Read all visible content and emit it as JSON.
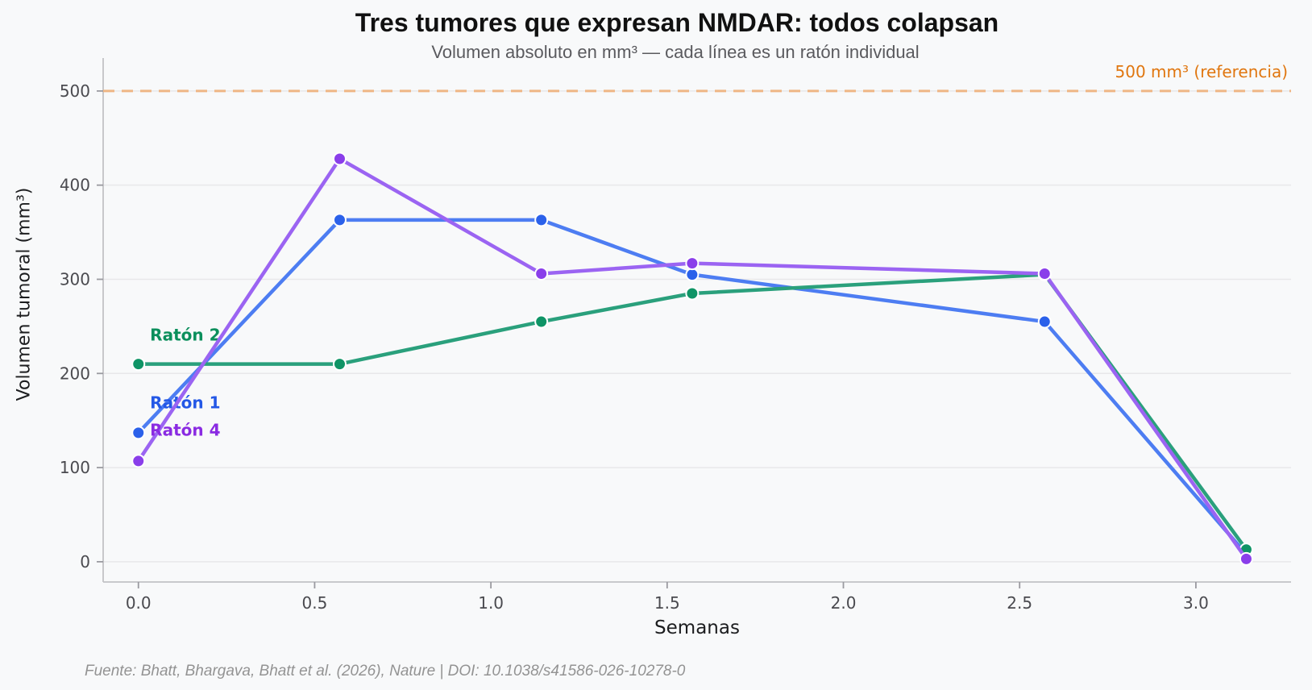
{
  "figure": {
    "background": "#f8f9fa",
    "footer": "Fuente: Bhatt, Bhargava, Bhatt et al. (2026), Nature | DOI: 10.1038/s41586-026-10278-0"
  },
  "colors": {
    "grid": "#e8e8ea",
    "spine": "#c2c2c6",
    "tick": "#9a9aa0",
    "tick_label": "#4a4a4f",
    "title": "#111111",
    "subtitle": "#5a5a5e",
    "axis_label": "#1c1d1f",
    "footer": "#939393"
  },
  "chart_data": {
    "type": "line",
    "title": "Tres tumores que expresan NMDAR: todos colapsan",
    "subtitle": "Volumen absoluto en mm³ — cada línea es un ratón individual",
    "xlabel": "Semanas",
    "ylabel": "Volumen tumoral (mm³)",
    "x": [
      0,
      0.571,
      1.143,
      1.571,
      2.571,
      3.143
    ],
    "series": [
      {
        "name": "Ratón 1",
        "values": [
          137,
          363,
          363,
          305,
          255,
          8
        ],
        "line_color": "#4d7df2",
        "marker_color": "#2b61ea",
        "label_color": "#2458e6",
        "label_x": 0.033,
        "label_y": 169
      },
      {
        "name": "Ratón 2",
        "values": [
          210,
          210,
          255,
          285,
          305,
          13
        ],
        "line_color": "#2aa07c",
        "marker_color": "#0f9466",
        "label_color": "#0b8f5c",
        "label_x": 0.033,
        "label_y": 241
      },
      {
        "name": "Ratón 4",
        "values": [
          107,
          428,
          306,
          317,
          306,
          3
        ],
        "line_color": "#9b64f2",
        "marker_color": "#8a3eea",
        "label_color": "#8a2be2",
        "label_x": 0.033,
        "label_y": 140
      }
    ],
    "reference_line": {
      "value": 500,
      "label": "500 mm³ (referencia)",
      "line_color": "#efb685",
      "text_color": "#e0760f",
      "style": "dashed"
    },
    "x_ticks": {
      "values": [
        0,
        0.5,
        1,
        1.5,
        2,
        2.5,
        3
      ],
      "labels": [
        "0.0",
        "0.5",
        "1.0",
        "1.5",
        "2.0",
        "2.5",
        "3.0"
      ]
    },
    "y_ticks": {
      "values": [
        0,
        100,
        200,
        300,
        400,
        500
      ],
      "labels": [
        "0",
        "100",
        "200",
        "300",
        "400",
        "500"
      ]
    },
    "xlim": [
      -0.1,
      3.27
    ],
    "ylim": [
      -21.5,
      535
    ],
    "grid": "horizontal-only",
    "legend_position": "inline-labels"
  }
}
